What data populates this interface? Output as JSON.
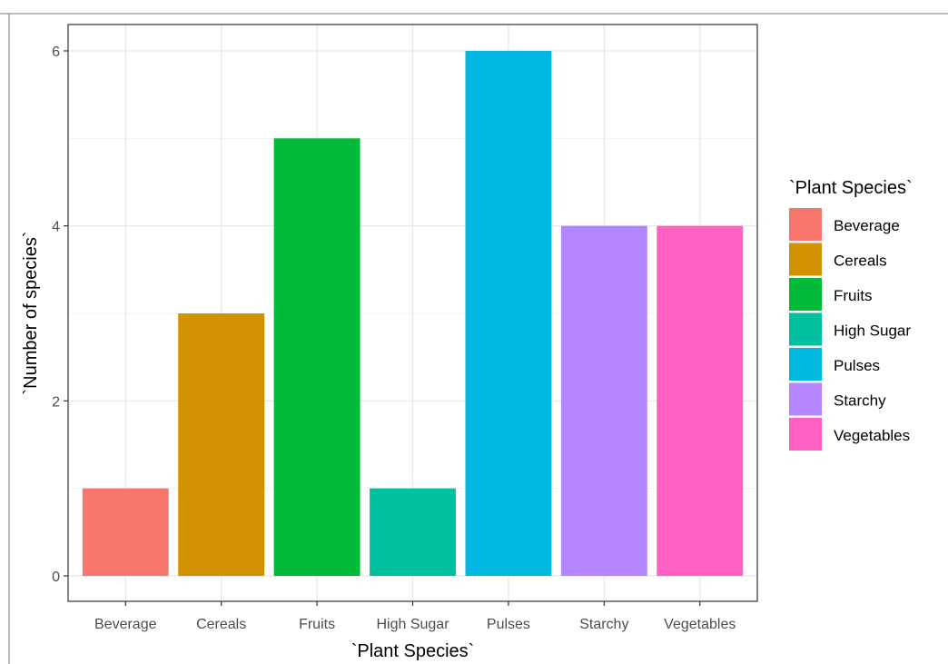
{
  "chart_data": {
    "type": "bar",
    "categories": [
      "Beverage",
      "Cereals",
      "Fruits",
      "High Sugar",
      "Pulses",
      "Starchy",
      "Vegetables"
    ],
    "values": [
      1,
      3,
      5,
      1,
      6,
      4,
      4
    ],
    "colors": [
      "#F8766D",
      "#D39200",
      "#00BA38",
      "#00C19F",
      "#00B9E3",
      "#B385FF",
      "#FF61C3"
    ],
    "title": "",
    "xlabel": "`Plant Species`",
    "ylabel": "`Number of species`",
    "ylim": [
      0,
      6.25
    ],
    "yticks": [
      0,
      2,
      4,
      6
    ],
    "grid": true,
    "legend": {
      "title": "`Plant Species`",
      "placement": "right",
      "entries": [
        "Beverage",
        "Cereals",
        "Fruits",
        "High Sugar",
        "Pulses",
        "Starchy",
        "Vegetables"
      ]
    }
  }
}
